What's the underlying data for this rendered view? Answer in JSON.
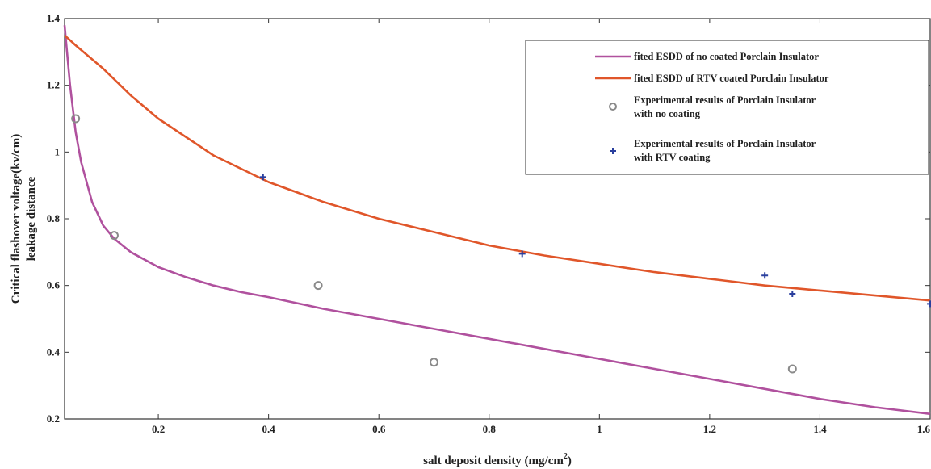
{
  "chart_data": {
    "type": "line",
    "xlabel": "salt deposit density (mg/cm",
    "xlabel_sup": "2",
    "xlabel_end": ")",
    "ylabel_line1": "Critical flashover voltage(kv/cm)",
    "ylabel_line2": "leakage distance",
    "xlim": [
      0.03,
      1.6
    ],
    "ylim": [
      0.2,
      1.4
    ],
    "xticks": [
      0.2,
      0.4,
      0.6,
      0.8,
      1,
      1.2,
      1.4,
      1.6
    ],
    "xtick_labels": [
      "0.2",
      "0.4",
      "0.6",
      "0.8",
      "1",
      "1.2",
      "1.4",
      "1.6"
    ],
    "yticks": [
      0.2,
      0.4,
      0.6,
      0.8,
      1,
      1.2,
      1.4
    ],
    "ytick_labels": [
      "0.2",
      "0.4",
      "0.6",
      "0.8",
      "1",
      "1.2",
      "1.4"
    ],
    "grid": false,
    "legend_position": "top-right",
    "series": [
      {
        "name": "fited ESDD of no coated Porclain Insulator",
        "kind": "line",
        "color": "#b0519e",
        "x": [
          0.03,
          0.04,
          0.05,
          0.06,
          0.08,
          0.1,
          0.12,
          0.15,
          0.2,
          0.25,
          0.3,
          0.35,
          0.4,
          0.5,
          0.6,
          0.7,
          0.8,
          0.9,
          1.0,
          1.1,
          1.2,
          1.3,
          1.4,
          1.5,
          1.6
        ],
        "y": [
          1.38,
          1.2,
          1.06,
          0.97,
          0.85,
          0.78,
          0.74,
          0.7,
          0.655,
          0.625,
          0.6,
          0.58,
          0.565,
          0.53,
          0.5,
          0.47,
          0.44,
          0.41,
          0.38,
          0.35,
          0.32,
          0.29,
          0.26,
          0.235,
          0.215
        ]
      },
      {
        "name": "fited ESDD of RTV coated Porclain Insulator",
        "kind": "line",
        "color": "#e0562a",
        "x": [
          0.03,
          0.05,
          0.1,
          0.15,
          0.2,
          0.3,
          0.4,
          0.5,
          0.6,
          0.7,
          0.8,
          0.9,
          1.0,
          1.1,
          1.2,
          1.3,
          1.4,
          1.5,
          1.6
        ],
        "y": [
          1.35,
          1.32,
          1.25,
          1.17,
          1.1,
          0.99,
          0.91,
          0.85,
          0.8,
          0.76,
          0.72,
          0.69,
          0.665,
          0.64,
          0.62,
          0.6,
          0.585,
          0.57,
          0.555
        ]
      },
      {
        "name": "Experimental results of Porclain Insulator with no coating",
        "legend_line1": "Experimental results of Porclain Insulator",
        "legend_line2": "with no coating",
        "kind": "scatter",
        "marker": "circle",
        "color": "#8a8a8a",
        "x": [
          0.05,
          0.12,
          0.49,
          0.7,
          1.35
        ],
        "y": [
          1.1,
          0.75,
          0.6,
          0.37,
          0.35
        ]
      },
      {
        "name": "Experimental results of Porclain Insulator with RTV coating",
        "legend_line1": "Experimental results of Porclain Insulator",
        "legend_line2": "with RTV coating",
        "kind": "scatter",
        "marker": "plus",
        "color": "#2a3f9e",
        "x": [
          0.39,
          0.86,
          1.3,
          1.35,
          1.6
        ],
        "y": [
          0.925,
          0.695,
          0.63,
          0.575,
          0.545
        ]
      }
    ]
  }
}
